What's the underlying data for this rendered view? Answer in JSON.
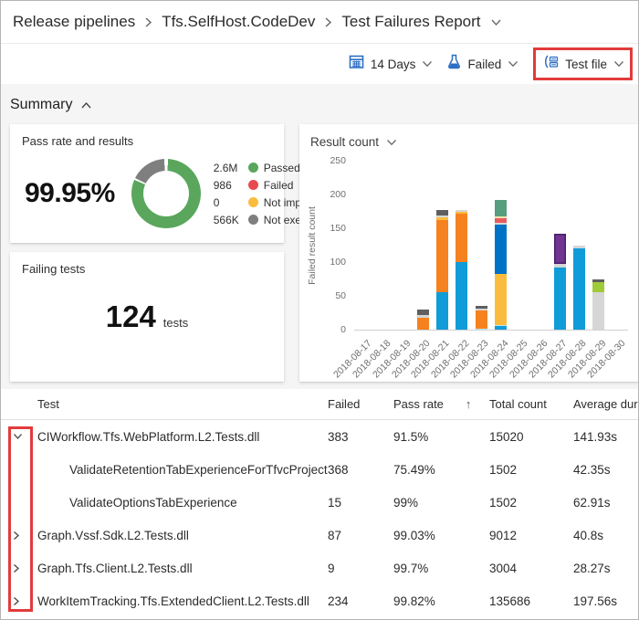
{
  "breadcrumb": {
    "items": [
      "Release pipelines",
      "Tfs.SelfHost.CodeDev",
      "Test Failures Report"
    ]
  },
  "filters": {
    "period": "14 Days",
    "outcome": "Failed",
    "group_by": "Test file",
    "icon_color": "#2c6fc4"
  },
  "summary": {
    "title": "Summary",
    "pass_card": {
      "title": "Pass rate and results",
      "rate": "99.95%",
      "donut": {
        "passed_pct": 81.5,
        "not_executed_pct": 18.5,
        "passed_color": "#5aa65c",
        "not_executed_color": "#7f7f7f"
      },
      "legend": [
        {
          "value": "2.6M",
          "label": "Passed",
          "color": "#5aa65c"
        },
        {
          "value": "986",
          "label": "Failed",
          "color": "#e8494f"
        },
        {
          "value": "0",
          "label": "Not impacted",
          "color": "#fbbc3d"
        },
        {
          "value": "566K",
          "label": "Not executed",
          "color": "#7f7f7f"
        }
      ]
    },
    "failing_card": {
      "title": "Failing tests",
      "count": "124",
      "unit": "tests"
    }
  },
  "chart_data": {
    "type": "bar",
    "stacked": true,
    "title": "Result count",
    "ylabel": "Failed result count",
    "ylim": [
      0,
      250
    ],
    "yticks": [
      0,
      50,
      100,
      150,
      200,
      250
    ],
    "grid": false,
    "categories": [
      "2018-08-17",
      "2018-08-18",
      "2018-08-19",
      "2018-08-20",
      "2018-08-21",
      "2018-08-22",
      "2018-08-23",
      "2018-08-24",
      "2018-08-25",
      "2018-08-26",
      "2018-08-27",
      "2018-08-28",
      "2018-08-29",
      "2018-08-30"
    ],
    "palette": {
      "cyan": "#109cd8",
      "lightcyan": "#bfe6f2",
      "orange": "#f6821f",
      "amber": "#fbbc3d",
      "blue": "#0072c6",
      "green": "#569e7e",
      "red": "#e85b5f",
      "cream": "#eee2ae",
      "purple": "#71348f",
      "purple_border": "#4b1e69",
      "lime": "#9fcb38",
      "lightgray": "#d6d6d6",
      "darkgray": "#5f5f5f"
    },
    "bars": [
      {
        "date": "2018-08-17",
        "segments": []
      },
      {
        "date": "2018-08-18",
        "segments": []
      },
      {
        "date": "2018-08-19",
        "segments": []
      },
      {
        "date": "2018-08-20",
        "segments": [
          {
            "color": "orange",
            "value": 18
          },
          {
            "color": "lightgray",
            "value": 4
          },
          {
            "color": "darkgray",
            "value": 8
          }
        ]
      },
      {
        "date": "2018-08-21",
        "segments": [
          {
            "color": "cyan",
            "value": 55
          },
          {
            "color": "orange",
            "value": 107
          },
          {
            "color": "amber",
            "value": 4
          },
          {
            "color": "lightgray",
            "value": 3
          },
          {
            "color": "darkgray",
            "value": 8
          }
        ]
      },
      {
        "date": "2018-08-22",
        "segments": [
          {
            "color": "cyan",
            "value": 100
          },
          {
            "color": "orange",
            "value": 72
          },
          {
            "color": "amber",
            "value": 3
          },
          {
            "color": "lightgray",
            "value": 2
          }
        ]
      },
      {
        "date": "2018-08-23",
        "segments": [
          {
            "color": "lightcyan",
            "value": 2
          },
          {
            "color": "orange",
            "value": 26
          },
          {
            "color": "lightgray",
            "value": 3
          },
          {
            "color": "darkgray",
            "value": 4
          }
        ]
      },
      {
        "date": "2018-08-24",
        "segments": [
          {
            "color": "cyan",
            "value": 5
          },
          {
            "color": "lightcyan",
            "value": 2
          },
          {
            "color": "amber",
            "value": 75
          },
          {
            "color": "blue",
            "value": 73
          },
          {
            "color": "lightgray",
            "value": 3
          },
          {
            "color": "red",
            "value": 7
          },
          {
            "color": "cream",
            "value": 3
          },
          {
            "color": "green",
            "value": 24
          }
        ]
      },
      {
        "date": "2018-08-25",
        "segments": []
      },
      {
        "date": "2018-08-26",
        "segments": []
      },
      {
        "date": "2018-08-27",
        "segments": [
          {
            "color": "cyan",
            "value": 92
          },
          {
            "color": "lightgray",
            "value": 5
          },
          {
            "color": "purple",
            "value": 45,
            "border": "purple_border"
          }
        ]
      },
      {
        "date": "2018-08-28",
        "segments": [
          {
            "color": "cyan",
            "value": 120
          },
          {
            "color": "lightgray",
            "value": 4
          }
        ]
      },
      {
        "date": "2018-08-29",
        "segments": [
          {
            "color": "lightgray",
            "value": 55
          },
          {
            "color": "lime",
            "value": 15
          },
          {
            "color": "darkgray",
            "value": 4
          }
        ]
      },
      {
        "date": "2018-08-30",
        "segments": []
      }
    ]
  },
  "table": {
    "columns": [
      "Test",
      "Failed",
      "Pass rate",
      "Total count",
      "Average duration"
    ],
    "sort_column": "Pass rate",
    "sort_arrow": "↑",
    "rows": [
      {
        "expand": "expanded",
        "indent": 0,
        "name": "CIWorkflow.Tfs.WebPlatform.L2.Tests.dll",
        "failed": "383",
        "pass_rate": "91.5%",
        "total_count": "15020",
        "avg_duration": "141.93s"
      },
      {
        "expand": "none",
        "indent": 1,
        "name": "ValidateRetentionTabExperienceForTfvcProject",
        "failed": "368",
        "pass_rate": "75.49%",
        "total_count": "1502",
        "avg_duration": "42.35s"
      },
      {
        "expand": "none",
        "indent": 1,
        "name": "ValidateOptionsTabExperience",
        "failed": "15",
        "pass_rate": "99%",
        "total_count": "1502",
        "avg_duration": "62.91s"
      },
      {
        "expand": "collapsed",
        "indent": 0,
        "name": "Graph.Vssf.Sdk.L2.Tests.dll",
        "failed": "87",
        "pass_rate": "99.03%",
        "total_count": "9012",
        "avg_duration": "40.8s"
      },
      {
        "expand": "collapsed",
        "indent": 0,
        "name": "Graph.Tfs.Client.L2.Tests.dll",
        "failed": "9",
        "pass_rate": "99.7%",
        "total_count": "3004",
        "avg_duration": "28.27s"
      },
      {
        "expand": "collapsed",
        "indent": 0,
        "name": "WorkItemTracking.Tfs.ExtendedClient.L2.Tests.dll",
        "failed": "234",
        "pass_rate": "99.82%",
        "total_count": "135686",
        "avg_duration": "197.56s"
      }
    ]
  },
  "annotations": {
    "box_color": "#e23b3b"
  }
}
